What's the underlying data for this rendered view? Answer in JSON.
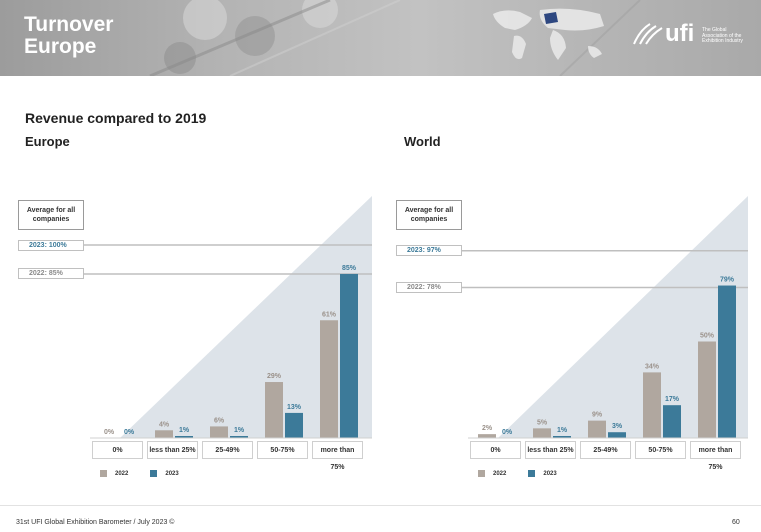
{
  "header": {
    "title_line1": "Turnover",
    "title_line2": "Europe",
    "logo_text": "ufi",
    "logo_tagline": "The Global Association of the Exhibition Industry"
  },
  "subtitle": "Revenue compared to 2019",
  "colors": {
    "y2022": "#b0a79f",
    "y2023": "#3c7a99",
    "triangle": "#dde3e9",
    "refline": "#bfbfbf"
  },
  "average_box_label": "Average for all companies",
  "legend": {
    "y2022": "2022",
    "y2023": "2023"
  },
  "footer": {
    "text": "31st UFI Global Exhibition Barometer / July 2023 ©",
    "page": "60"
  },
  "chart_data": [
    {
      "type": "bar",
      "title": "Europe",
      "categories": [
        "0%",
        "less than 25%",
        "25-49%",
        "50-75%",
        "more than 75%"
      ],
      "series": [
        {
          "name": "2022",
          "values": [
            0,
            4,
            6,
            29,
            61
          ]
        },
        {
          "name": "2023",
          "values": [
            0,
            1,
            1,
            13,
            85
          ]
        }
      ],
      "value_labels": {
        "2022": [
          "0%",
          "4%",
          "6%",
          "29%",
          "61%"
        ],
        "2023": [
          "0%",
          "1%",
          "1%",
          "13%",
          "85%"
        ]
      },
      "reference_lines": [
        {
          "label": "2023: 100%",
          "value": 100
        },
        {
          "label": "2022: 85%",
          "value": 85
        }
      ],
      "ylim": [
        0,
        100
      ],
      "grid": false,
      "legend_position": "bottom-left"
    },
    {
      "type": "bar",
      "title": "World",
      "categories": [
        "0%",
        "less than 25%",
        "25-49%",
        "50-75%",
        "more than 75%"
      ],
      "series": [
        {
          "name": "2022",
          "values": [
            2,
            5,
            9,
            34,
            50
          ]
        },
        {
          "name": "2023",
          "values": [
            0,
            1,
            3,
            17,
            79
          ]
        }
      ],
      "value_labels": {
        "2022": [
          "2%",
          "5%",
          "9%",
          "34%",
          "50%"
        ],
        "2023": [
          "0%",
          "1%",
          "3%",
          "17%",
          "79%"
        ]
      },
      "reference_lines": [
        {
          "label": "2023: 97%",
          "value": 97
        },
        {
          "label": "2022: 78%",
          "value": 78
        }
      ],
      "ylim": [
        0,
        100
      ],
      "grid": false,
      "legend_position": "bottom-left"
    }
  ]
}
